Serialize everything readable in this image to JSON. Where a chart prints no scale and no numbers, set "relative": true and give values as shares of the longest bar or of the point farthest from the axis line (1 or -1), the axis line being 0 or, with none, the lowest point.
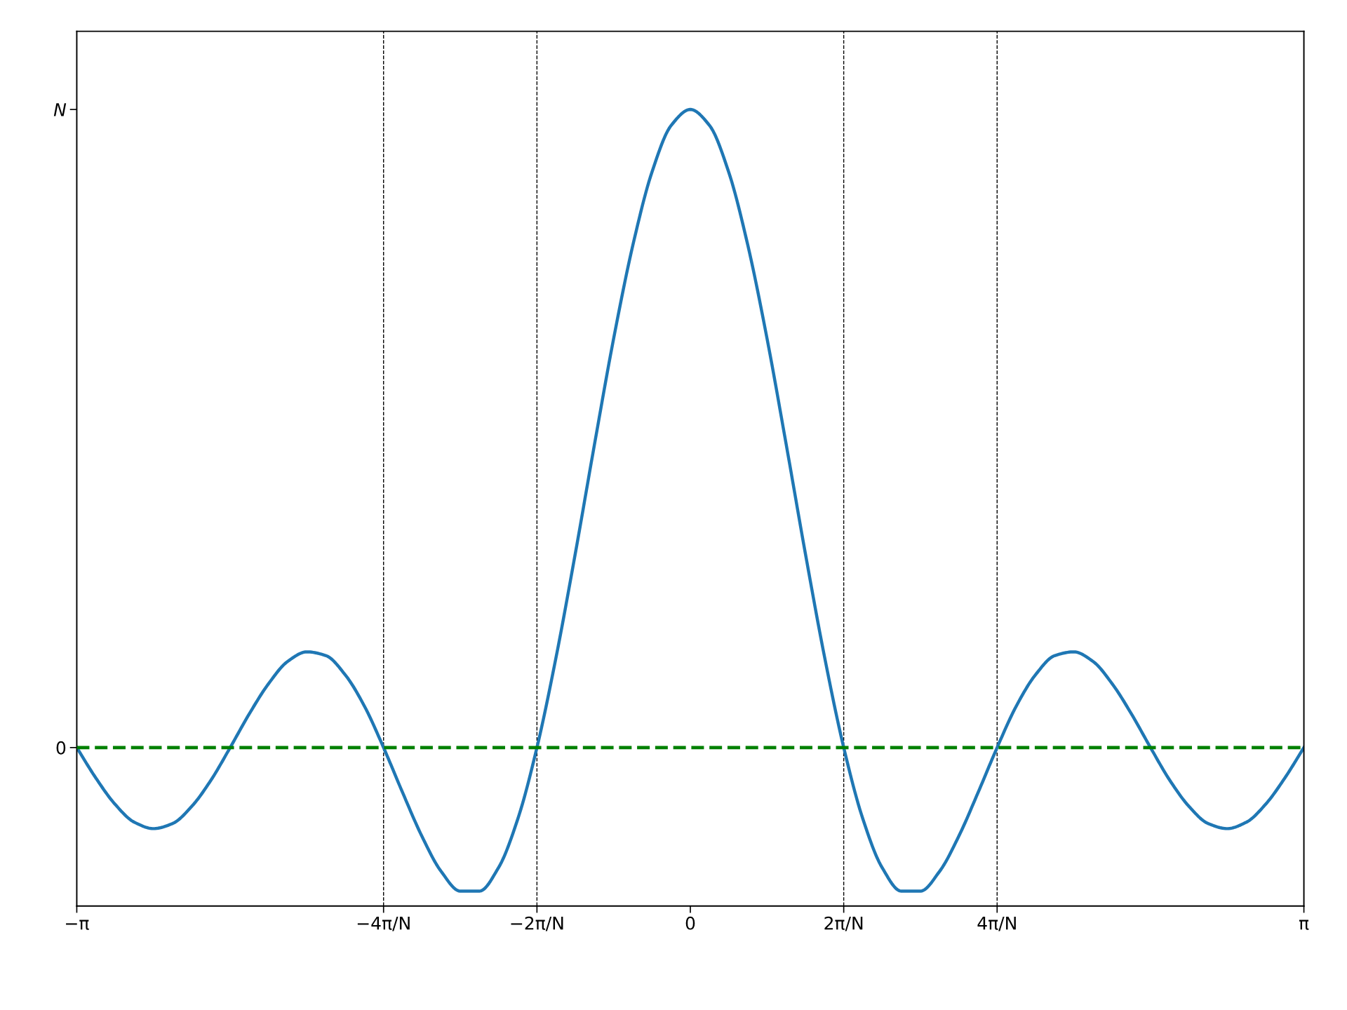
{
  "chart_data": {
    "type": "line",
    "categories": [
      "−π",
      null,
      null,
      null,
      null,
      null,
      null,
      null,
      null,
      null,
      null,
      null,
      null,
      null,
      null,
      null,
      "−4π/N",
      null,
      null,
      null,
      null,
      null,
      null,
      null,
      "−2π/N",
      null,
      null,
      null,
      null,
      null,
      null,
      null,
      "0",
      null,
      null,
      null,
      null,
      null,
      null,
      null,
      "2π/N",
      null,
      null,
      null,
      null,
      null,
      null,
      null,
      "4π/N",
      null,
      null,
      null,
      null,
      null,
      null,
      null,
      null,
      null,
      null,
      null,
      null,
      null,
      null,
      null,
      "π"
    ],
    "relative": true,
    "series": [
      {
        "color": "#1f77b4",
        "values": [
          0,
          -0.048,
          -0.089,
          -0.117,
          -0.127,
          -0.119,
          -0.092,
          -0.051,
          0,
          0.053,
          0.1,
          0.135,
          0.15,
          0.144,
          0.114,
          0.065,
          0,
          -0.071,
          -0.139,
          -0.194,
          -0.225,
          -0.225,
          -0.188,
          -0.112,
          0,
          0.142,
          0.304,
          0.475,
          0.641,
          0.787,
          0.902,
          0.975,
          1,
          0.975,
          0.902,
          0.787,
          0.641,
          0.475,
          0.304,
          0.142,
          0,
          -0.112,
          -0.188,
          -0.225,
          -0.225,
          -0.194,
          -0.139,
          -0.071,
          0,
          0.065,
          0.114,
          0.144,
          0.15,
          0.135,
          0.1,
          0.053,
          0,
          -0.051,
          -0.092,
          -0.119,
          -0.127,
          -0.117,
          -0.089,
          -0.048,
          0
        ]
      }
    ],
    "annotations": [
      "0",
      "N"
    ],
    "ref_lines": [
      {
        "axis": "x",
        "value": "−4π/N",
        "color": "#000000",
        "line_style": "dashed"
      },
      {
        "axis": "x",
        "value": "−2π/N",
        "color": "#000000",
        "line_style": "dashed"
      },
      {
        "axis": "x",
        "value": "2π/N",
        "color": "#000000",
        "line_style": "dashed"
      },
      {
        "axis": "x",
        "value": "4π/N",
        "color": "#000000",
        "line_style": "dashed"
      },
      {
        "axis": "y",
        "value": 0,
        "color": "#008000",
        "line_style": "dashed"
      }
    ],
    "grid": false,
    "legend": false,
    "marker": "none",
    "line_style": "solid"
  }
}
